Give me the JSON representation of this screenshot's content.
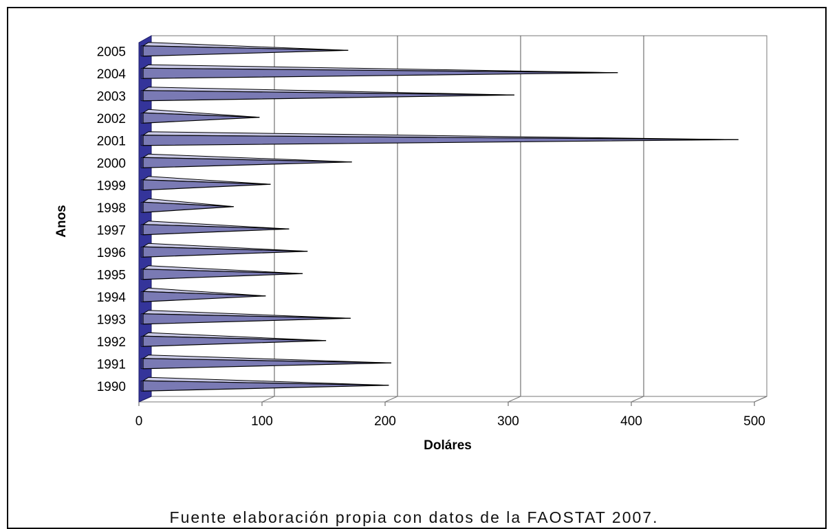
{
  "chart_data": {
    "type": "bar",
    "orientation": "horizontal",
    "style": "3d-pyramid",
    "categories": [
      "1990",
      "1991",
      "1992",
      "1993",
      "1994",
      "1995",
      "1996",
      "1997",
      "1998",
      "1999",
      "2000",
      "2001",
      "2002",
      "2003",
      "2004",
      "2005"
    ],
    "series": [
      {
        "values": [
          203,
          205,
          152,
          172,
          103,
          133,
          137,
          122,
          77,
          107,
          173,
          487,
          98,
          305,
          389,
          170
        ]
      }
    ],
    "xlabel": "Doláres",
    "ylabel": "Anos",
    "xlim": [
      0,
      500
    ],
    "xticks": [
      "0",
      "100",
      "200",
      "300",
      "400",
      "500"
    ],
    "grid": "vertical",
    "legend": "none",
    "colors": {
      "bar": "#7a7ab4",
      "wall": "#34349a",
      "grid": "#555555"
    }
  },
  "source_note": "Fuente elaboración propia con datos de la FAOSTAT 2007."
}
